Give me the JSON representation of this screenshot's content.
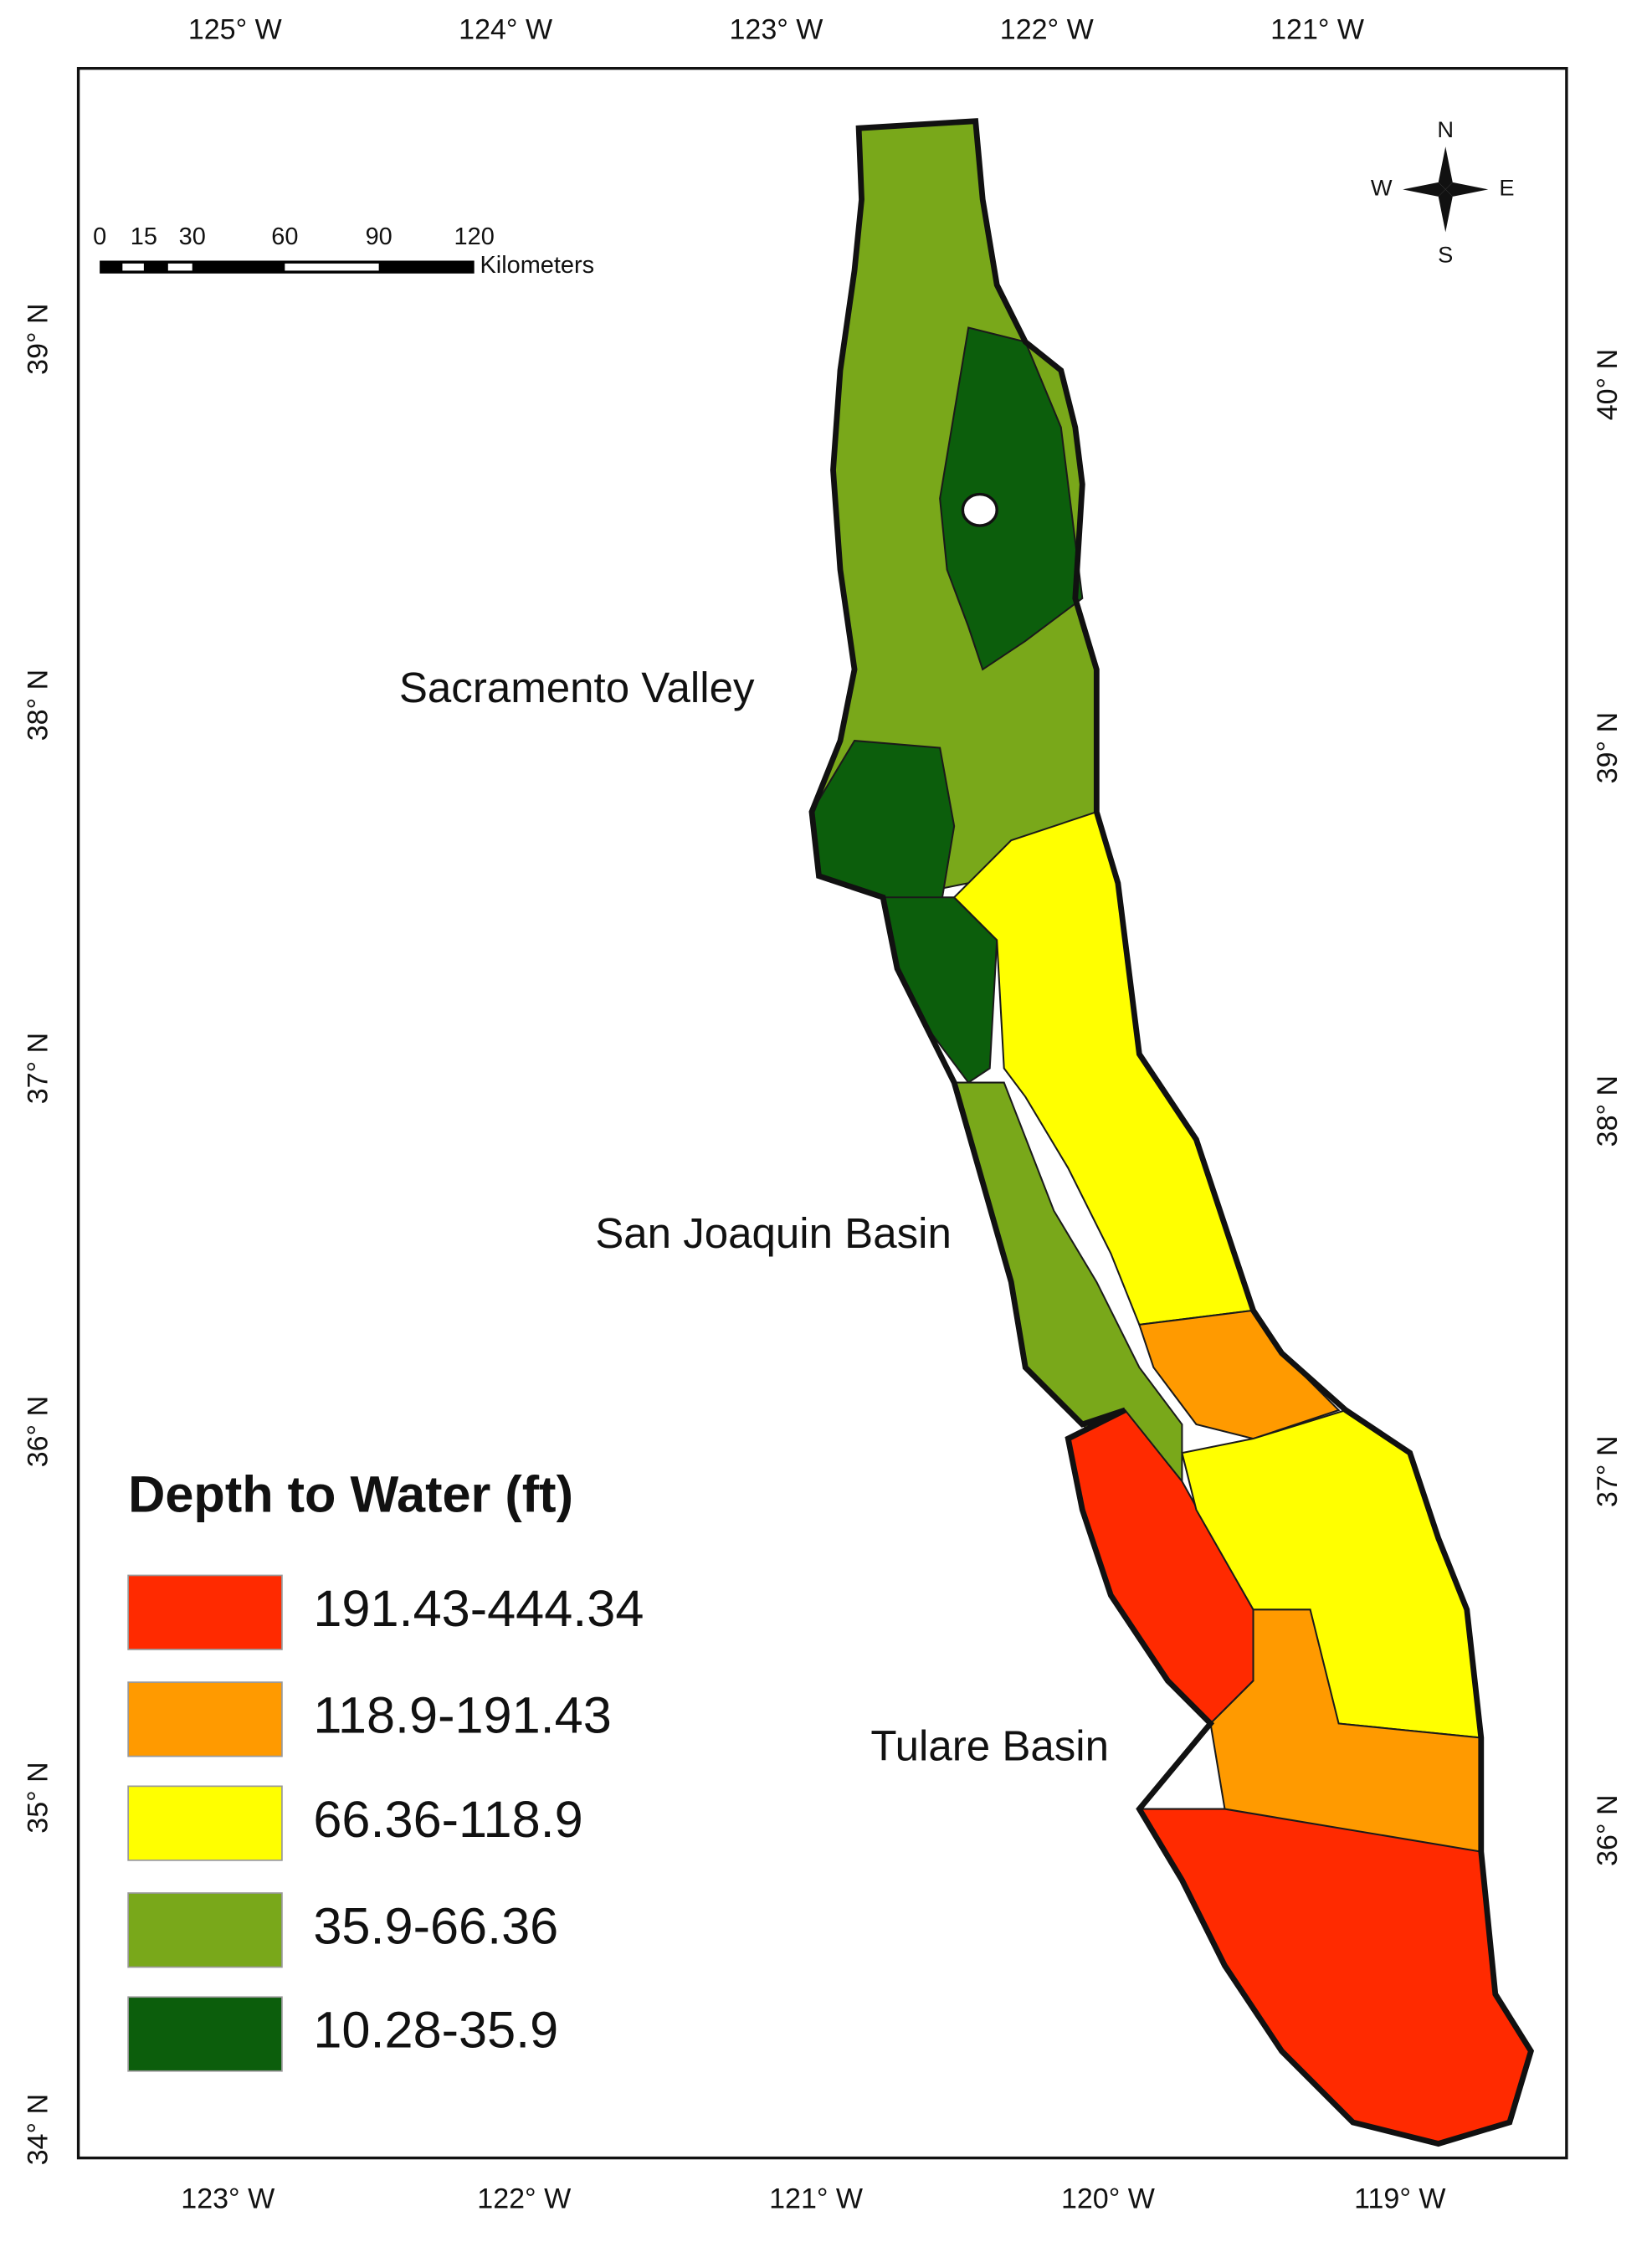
{
  "map": {
    "top_labels": [
      "125° W",
      "124° W",
      "123° W",
      "122° W",
      "121° W"
    ],
    "bottom_labels": [
      "123° W",
      "122° W",
      "121° W",
      "120° W",
      "119° W"
    ],
    "left_labels": [
      "39° N",
      "38° N",
      "37° N",
      "36° N",
      "35° N",
      "34° N"
    ],
    "right_labels": [
      "40° N",
      "39° N",
      "38° N",
      "37° N",
      "36° N"
    ],
    "scale_bar": {
      "ticks": [
        "0",
        "15",
        "30",
        "60",
        "90",
        "120"
      ],
      "unit": "Kilometers"
    },
    "north_arrow": {
      "n": "N",
      "s": "S",
      "w": "W",
      "e": "E"
    },
    "region_labels": [
      "Sacramento Valley",
      "San Joaquin Basin",
      "Tulare Basin"
    ],
    "legend": {
      "title": "Depth to Water (ft)",
      "items": [
        {
          "label": "191.43-444.34",
          "color": "#ff2a00"
        },
        {
          "label": " 118.9-191.43",
          "color": "#ff9a00"
        },
        {
          "label": "66.36-118.9",
          "color": "#ffff00"
        },
        {
          "label": "35.9-66.36",
          "color": "#79a81a"
        },
        {
          "label": "10.28-35.9",
          "color": "#0c5e0c"
        }
      ]
    }
  }
}
